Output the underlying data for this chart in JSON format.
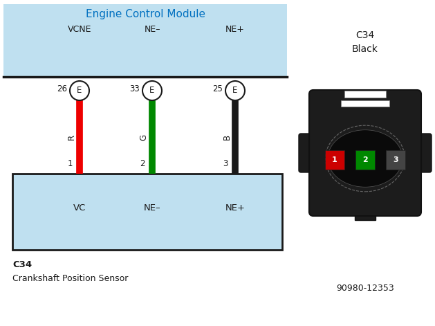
{
  "title": "Engine Control Module",
  "title_color": "#0070C0",
  "ecm_bg": "#BFE0F0",
  "wire_colors": [
    "#EE0000",
    "#008800",
    "#1A1A1A"
  ],
  "wire_labels": [
    "R",
    "G",
    "B"
  ],
  "ecm_header_labels": [
    "VCNE",
    "NE–",
    "NE+"
  ],
  "ecm_pin_numbers": [
    "26",
    "33",
    "25"
  ],
  "sensor_labels": [
    "VC",
    "NE–",
    "NE+"
  ],
  "pin_bottom_numbers": [
    "1",
    "2",
    "3"
  ],
  "sensor_name": "C34",
  "sensor_desc": "Crankshaft Position Sensor",
  "connector_title": "C34",
  "connector_subtitle": "Black",
  "connector_part": "90980-12353",
  "bg_color": "#FFFFFF",
  "pin_colors": [
    "#CC0000",
    "#008800",
    "#444444"
  ]
}
